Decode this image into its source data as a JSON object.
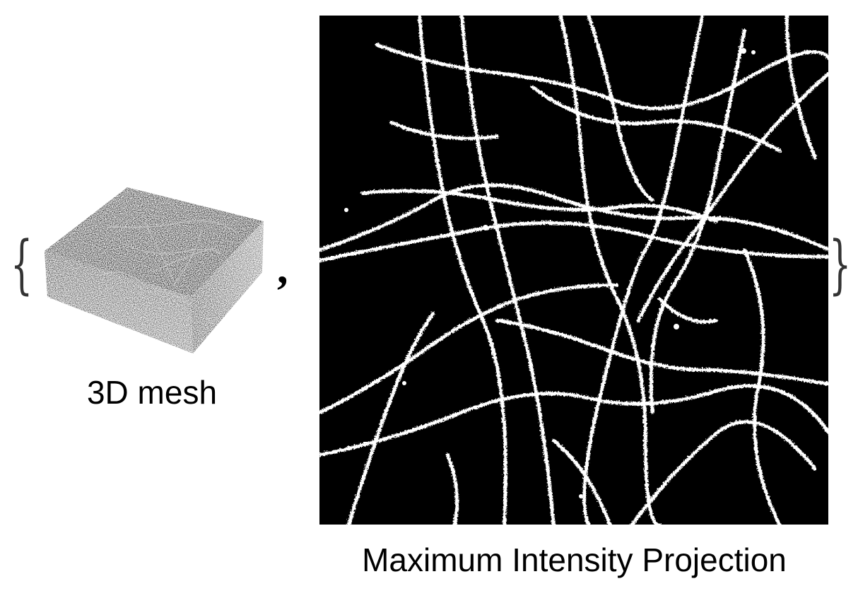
{
  "output": {
    "open_brace": "{",
    "separator": ",",
    "close_brace": "}",
    "items": [
      {
        "caption": "3D mesh",
        "kind": "volume-render"
      },
      {
        "caption": "Maximum Intensity Projection",
        "kind": "binary-image"
      }
    ]
  },
  "colors": {
    "background": "#ffffff",
    "mip_background": "#000000",
    "mip_foreground": "#ffffff",
    "volume_body": "#1a1a1a"
  }
}
